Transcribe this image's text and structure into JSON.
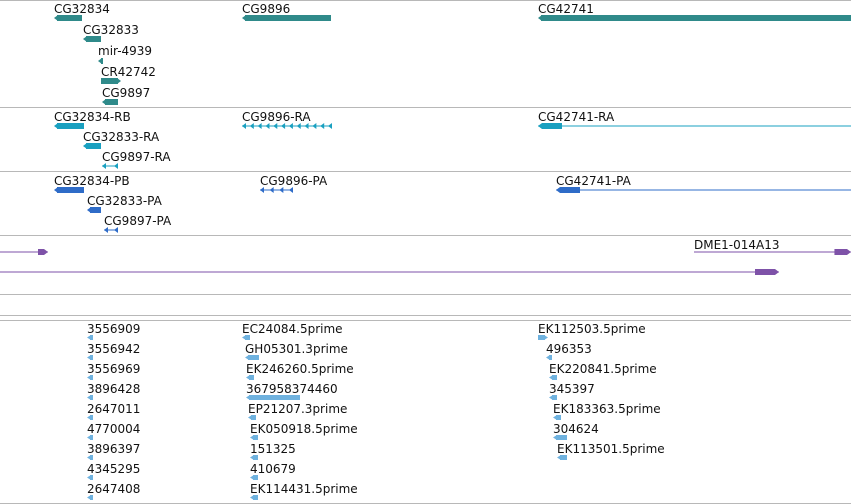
{
  "colors": {
    "gene": "#2f8a8a",
    "transcript": "#1aa0c0",
    "protein": "#2f6cc8",
    "clone": "#7e52a8",
    "est": "#6fb2df",
    "divider": "#b8b8b8",
    "text": "#111111"
  },
  "tracks": {
    "gene": {
      "features": [
        {
          "label": "CG32834",
          "strand": "-",
          "style": "solid"
        },
        {
          "label": "CG32833",
          "strand": "-",
          "style": "solid"
        },
        {
          "label": "mir-4939",
          "strand": "-",
          "style": "solid"
        },
        {
          "label": "CR42742",
          "strand": "+",
          "style": "solid"
        },
        {
          "label": "CG9897",
          "strand": "-",
          "style": "solid"
        },
        {
          "label": "CG9896",
          "strand": "-",
          "style": "solid"
        },
        {
          "label": "CG42741",
          "strand": "-",
          "style": "solid"
        }
      ]
    },
    "transcript": {
      "features": [
        {
          "label": "CG32834-RB",
          "strand": "-",
          "style": "solid"
        },
        {
          "label": "CG32833-RA",
          "strand": "-",
          "style": "solid"
        },
        {
          "label": "CG9897-RA",
          "strand": "-",
          "style": "exons"
        },
        {
          "label": "CG9896-RA",
          "strand": "-",
          "style": "exons"
        },
        {
          "label": "CG42741-RA",
          "strand": "-",
          "style": "intron"
        }
      ]
    },
    "protein": {
      "features": [
        {
          "label": "CG32834-PB",
          "strand": "-",
          "style": "solid"
        },
        {
          "label": "CG32833-PA",
          "strand": "-",
          "style": "solid"
        },
        {
          "label": "CG9897-PA",
          "strand": "-",
          "style": "exons"
        },
        {
          "label": "CG9896-PA",
          "strand": "-",
          "style": "exons"
        },
        {
          "label": "CG42741-PA",
          "strand": "-",
          "style": "intron"
        }
      ]
    },
    "clone": {
      "features": [
        {
          "label": "",
          "strand": "+",
          "style": "intron"
        },
        {
          "label": "DME1-014A13",
          "strand": "+",
          "style": "intron"
        },
        {
          "label": "",
          "strand": "+",
          "style": "intron"
        }
      ]
    },
    "est": {
      "features": [
        {
          "label": "3556909",
          "strand": "-"
        },
        {
          "label": "3556942",
          "strand": "-"
        },
        {
          "label": "3556969",
          "strand": "-"
        },
        {
          "label": "3896428",
          "strand": "-"
        },
        {
          "label": "2647011",
          "strand": "-"
        },
        {
          "label": "4770004",
          "strand": "-"
        },
        {
          "label": "3896397",
          "strand": "-"
        },
        {
          "label": "4345295",
          "strand": "-"
        },
        {
          "label": "2647408",
          "strand": "-"
        },
        {
          "label": "EC24084.5prime",
          "strand": "-"
        },
        {
          "label": "GH05301.3prime",
          "strand": "-"
        },
        {
          "label": "EK246260.5prime",
          "strand": "-"
        },
        {
          "label": "367958374460",
          "strand": "-"
        },
        {
          "label": "EP21207.3prime",
          "strand": "-"
        },
        {
          "label": "EK050918.5prime",
          "strand": "-"
        },
        {
          "label": "151325",
          "strand": "-"
        },
        {
          "label": "410679",
          "strand": "-"
        },
        {
          "label": "EK114431.5prime",
          "strand": "-"
        },
        {
          "label": "EK112503.5prime",
          "strand": "+"
        },
        {
          "label": "496353",
          "strand": "-"
        },
        {
          "label": "EK220841.5prime",
          "strand": "-"
        },
        {
          "label": "345397",
          "strand": "-"
        },
        {
          "label": "EK183363.5prime",
          "strand": "-"
        },
        {
          "label": "304624",
          "strand": "-"
        },
        {
          "label": "EK113501.5prime",
          "strand": "-"
        }
      ]
    }
  }
}
